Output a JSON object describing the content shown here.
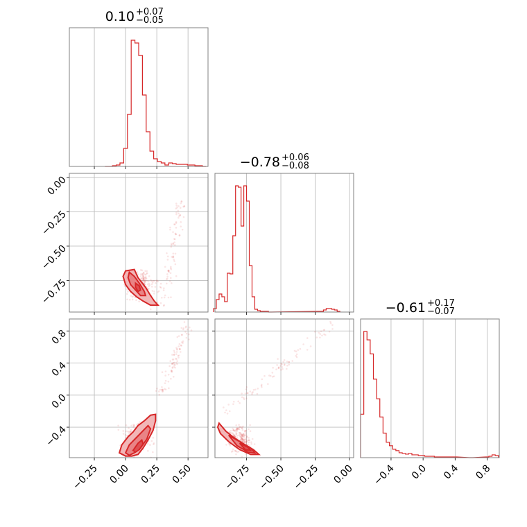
{
  "chart_data": {
    "type": "corner",
    "parameters": [
      "p0",
      "p1",
      "p2"
    ],
    "titles": [
      {
        "median": "0.10",
        "plus": "+0.07",
        "minus": "−0.05"
      },
      {
        "median": "−0.78",
        "plus": "+0.06",
        "minus": "−0.08"
      },
      {
        "median": "−0.61",
        "plus": "+0.17",
        "minus": "−0.07"
      }
    ],
    "ranges": [
      [
        -0.45,
        0.66
      ],
      [
        -0.98,
        0.03
      ],
      [
        -0.78,
        0.95
      ]
    ],
    "ticks": [
      {
        "values": [
          -0.25,
          0.0,
          0.25,
          0.5
        ],
        "labels": [
          "−0.25",
          "0.00",
          "0.25",
          "0.50"
        ]
      },
      {
        "values": [
          -0.75,
          -0.5,
          -0.25,
          0.0
        ],
        "labels": [
          "−0.75",
          "−0.50",
          "−0.25",
          "0.00"
        ]
      },
      {
        "values": [
          -0.4,
          0.0,
          0.4,
          0.8
        ],
        "labels": [
          "−0.4",
          "0.0",
          "0.4",
          "0.8"
        ]
      }
    ],
    "histograms": [
      {
        "x": [
          -0.15,
          -0.12,
          -0.09,
          -0.06,
          -0.03,
          0.0,
          0.03,
          0.06,
          0.09,
          0.12,
          0.15,
          0.18,
          0.21,
          0.24,
          0.27,
          0.3,
          0.33,
          0.36,
          0.39,
          0.42,
          0.45,
          0.48,
          0.51,
          0.54,
          0.57,
          0.6,
          0.63
        ],
        "counts": [
          0,
          0,
          1,
          2,
          5,
          26,
          75,
          182,
          178,
          160,
          103,
          50,
          22,
          11,
          7,
          5,
          2,
          5,
          4,
          3,
          3,
          3,
          2,
          2,
          1,
          1,
          0
        ]
      },
      {
        "x": [
          -0.98,
          -0.96,
          -0.94,
          -0.92,
          -0.9,
          -0.88,
          -0.86,
          -0.84,
          -0.82,
          -0.8,
          -0.78,
          -0.76,
          -0.74,
          -0.72,
          -0.7,
          -0.68,
          -0.66,
          -0.64,
          -0.62,
          -0.6,
          -0.58,
          -0.2,
          -0.18,
          -0.16,
          -0.14,
          -0.12,
          -0.1,
          -0.08
        ],
        "counts": [
          5,
          18,
          26,
          22,
          15,
          56,
          55,
          110,
          182,
          180,
          124,
          182,
          160,
          67,
          22,
          4,
          2,
          1,
          1,
          1,
          0,
          1,
          3,
          5,
          5,
          4,
          3,
          1
        ]
      },
      {
        "x": [
          -0.76,
          -0.72,
          -0.68,
          -0.64,
          -0.6,
          -0.56,
          -0.52,
          -0.48,
          -0.44,
          -0.4,
          -0.36,
          -0.32,
          -0.28,
          -0.24,
          -0.2,
          -0.16,
          -0.12,
          -0.08,
          -0.04,
          0.0,
          0.04,
          0.08,
          0.12,
          0.16,
          0.2,
          0.4,
          0.6,
          0.8,
          0.84,
          0.88,
          0.92
        ],
        "counts": [
          62,
          180,
          168,
          148,
          112,
          84,
          58,
          35,
          22,
          17,
          12,
          10,
          7,
          6,
          5,
          6,
          4,
          4,
          3,
          3,
          2,
          2,
          2,
          1,
          1,
          1,
          0,
          1,
          2,
          4,
          3
        ]
      }
    ],
    "pairs": [
      {
        "x_param": 0,
        "y_param": 1,
        "outer": [
          [
            0.0,
            -0.68
          ],
          [
            0.07,
            -0.67
          ],
          [
            0.1,
            -0.73
          ],
          [
            0.16,
            -0.8
          ],
          [
            0.2,
            -0.86
          ],
          [
            0.23,
            -0.9
          ],
          [
            0.26,
            -0.93
          ],
          [
            0.2,
            -0.93
          ],
          [
            0.14,
            -0.9
          ],
          [
            0.09,
            -0.87
          ],
          [
            0.04,
            -0.83
          ],
          [
            0.0,
            -0.78
          ],
          [
            -0.02,
            -0.72
          ]
        ],
        "mid": [
          [
            0.03,
            -0.69
          ],
          [
            0.07,
            -0.72
          ],
          [
            0.11,
            -0.77
          ],
          [
            0.15,
            -0.83
          ],
          [
            0.16,
            -0.86
          ],
          [
            0.12,
            -0.86
          ],
          [
            0.08,
            -0.82
          ],
          [
            0.04,
            -0.78
          ],
          [
            0.02,
            -0.73
          ]
        ],
        "inner": [
          [
            0.08,
            -0.77
          ],
          [
            0.11,
            -0.79
          ],
          [
            0.12,
            -0.82
          ],
          [
            0.1,
            -0.83
          ],
          [
            0.08,
            -0.8
          ]
        ],
        "cloud_center": [
          0.12,
          -0.79
        ],
        "cloud_spread": [
          0.1,
          0.08
        ],
        "tail": [
          [
            0.3,
            -0.9
          ],
          [
            0.45,
            -0.15
          ]
        ]
      },
      {
        "x_param": 0,
        "y_param": 2,
        "outer": [
          [
            -0.05,
            -0.72
          ],
          [
            -0.03,
            -0.62
          ],
          [
            0.02,
            -0.52
          ],
          [
            0.06,
            -0.46
          ],
          [
            0.1,
            -0.38
          ],
          [
            0.15,
            -0.32
          ],
          [
            0.2,
            -0.25
          ],
          [
            0.24,
            -0.24
          ],
          [
            0.24,
            -0.32
          ],
          [
            0.22,
            -0.44
          ],
          [
            0.18,
            -0.56
          ],
          [
            0.14,
            -0.66
          ],
          [
            0.1,
            -0.74
          ],
          [
            0.05,
            -0.76
          ],
          [
            0.0,
            -0.76
          ]
        ],
        "mid": [
          [
            0.0,
            -0.72
          ],
          [
            0.03,
            -0.62
          ],
          [
            0.08,
            -0.54
          ],
          [
            0.13,
            -0.46
          ],
          [
            0.18,
            -0.38
          ],
          [
            0.2,
            -0.42
          ],
          [
            0.17,
            -0.55
          ],
          [
            0.12,
            -0.66
          ],
          [
            0.07,
            -0.72
          ],
          [
            0.03,
            -0.75
          ]
        ],
        "inner": [
          [
            0.06,
            -0.69
          ],
          [
            0.1,
            -0.6
          ],
          [
            0.13,
            -0.56
          ],
          [
            0.14,
            -0.61
          ],
          [
            0.11,
            -0.68
          ],
          [
            0.08,
            -0.71
          ]
        ],
        "cloud_center": [
          0.1,
          -0.55
        ],
        "cloud_spread": [
          0.1,
          0.15
        ],
        "tail": [
          [
            0.28,
            0.0
          ],
          [
            0.5,
            0.85
          ]
        ]
      },
      {
        "x_param": 1,
        "y_param": 2,
        "outer": [
          [
            -0.95,
            -0.35
          ],
          [
            -0.9,
            -0.45
          ],
          [
            -0.85,
            -0.52
          ],
          [
            -0.78,
            -0.6
          ],
          [
            -0.7,
            -0.68
          ],
          [
            -0.66,
            -0.74
          ],
          [
            -0.72,
            -0.74
          ],
          [
            -0.8,
            -0.68
          ],
          [
            -0.88,
            -0.58
          ],
          [
            -0.94,
            -0.48
          ],
          [
            -0.96,
            -0.4
          ]
        ],
        "mid": [
          [
            -0.88,
            -0.5
          ],
          [
            -0.8,
            -0.58
          ],
          [
            -0.72,
            -0.66
          ],
          [
            -0.69,
            -0.72
          ],
          [
            -0.74,
            -0.71
          ],
          [
            -0.82,
            -0.63
          ]
        ],
        "inner": [
          [
            -0.8,
            -0.6
          ],
          [
            -0.74,
            -0.65
          ],
          [
            -0.72,
            -0.69
          ],
          [
            -0.76,
            -0.68
          ]
        ],
        "cloud_center": [
          -0.8,
          -0.55
        ],
        "cloud_spread": [
          0.07,
          0.15
        ],
        "tail": [
          [
            -0.9,
            -0.2
          ],
          [
            -0.1,
            0.9
          ]
        ]
      }
    ],
    "grid": true,
    "color": "#d62728"
  }
}
